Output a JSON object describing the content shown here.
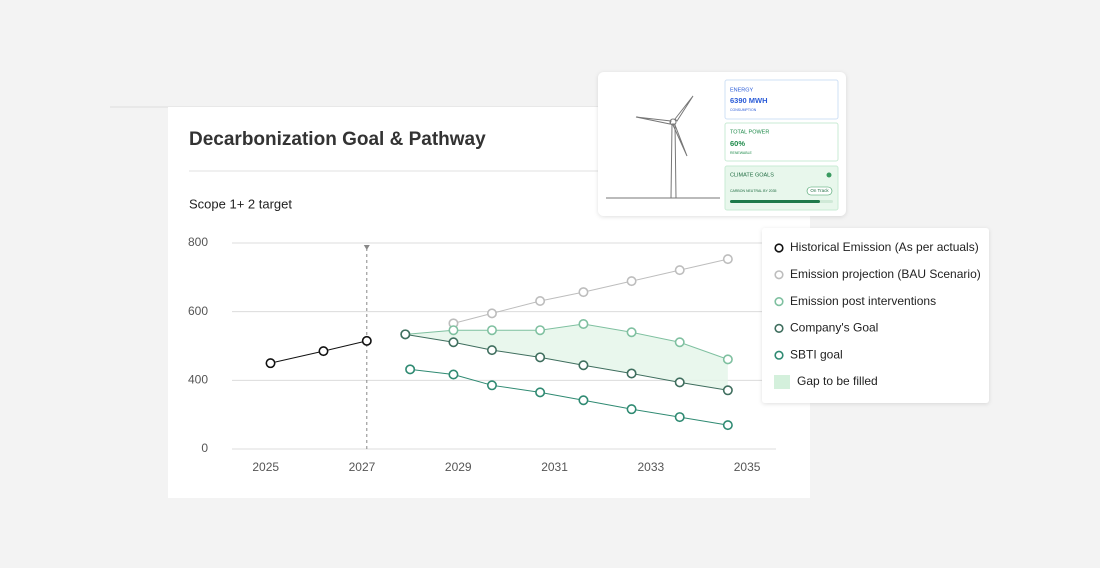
{
  "chart_data": {
    "type": "line",
    "title": "Decarbonization Goal & Pathway",
    "subtitle": "Scope 1+ 2 target",
    "xlim": [
      2024.3,
      2035.6
    ],
    "xticks": [
      2025,
      2027,
      2029,
      2031,
      2033,
      2035
    ],
    "ylim": [
      0,
      800
    ],
    "yticks": [
      0,
      400,
      600,
      800
    ],
    "grid": true,
    "series": [
      {
        "name": "Historical Emission (As per actuals)",
        "color": "#111111",
        "x": [
          2025.1,
          2026.2,
          2027.1
        ],
        "values": [
          450,
          485,
          515
        ]
      },
      {
        "name": "Emission projection (BAU Scenario)",
        "color": "#bdbdbd",
        "x": [
          2028.9,
          2029.7,
          2030.7,
          2031.6,
          2032.6,
          2033.6,
          2034.6
        ],
        "values": [
          566,
          595,
          631,
          657,
          689,
          721,
          753
        ]
      },
      {
        "name": "Emission post interventions",
        "color": "#7fc0a0",
        "x": [
          2027.9,
          2028.9,
          2029.7,
          2030.7,
          2031.6,
          2032.6,
          2033.6,
          2034.6
        ],
        "values": [
          534,
          546,
          546,
          546,
          564,
          540,
          511,
          461
        ]
      },
      {
        "name": "Company's Goal",
        "color": "#3f6e5e",
        "x": [
          2027.9,
          2028.9,
          2029.7,
          2030.7,
          2031.6,
          2032.6,
          2033.6,
          2034.6
        ],
        "values": [
          534,
          511,
          488,
          467,
          444,
          420,
          388,
          342
        ]
      },
      {
        "name": "SBTI goal",
        "color": "#2f8a72",
        "x": [
          2028.0,
          2028.9,
          2029.7,
          2030.7,
          2031.6,
          2032.6,
          2033.6,
          2034.6
        ],
        "values": [
          432,
          417,
          371,
          330,
          284,
          232,
          186,
          139
        ]
      }
    ],
    "gap_label": "Gap to be filled"
  },
  "widget": {
    "cards": [
      {
        "label": "ENERGY",
        "value": "6390 MWH",
        "note": "CONSUMPTION"
      },
      {
        "label": "TOTAL POWER",
        "value": "60%",
        "note": "RENEWABLE"
      },
      {
        "label": "CLIMATE GOALS",
        "note": "CARBON NEUTRAL BY 2035",
        "status": "On Track"
      }
    ]
  }
}
